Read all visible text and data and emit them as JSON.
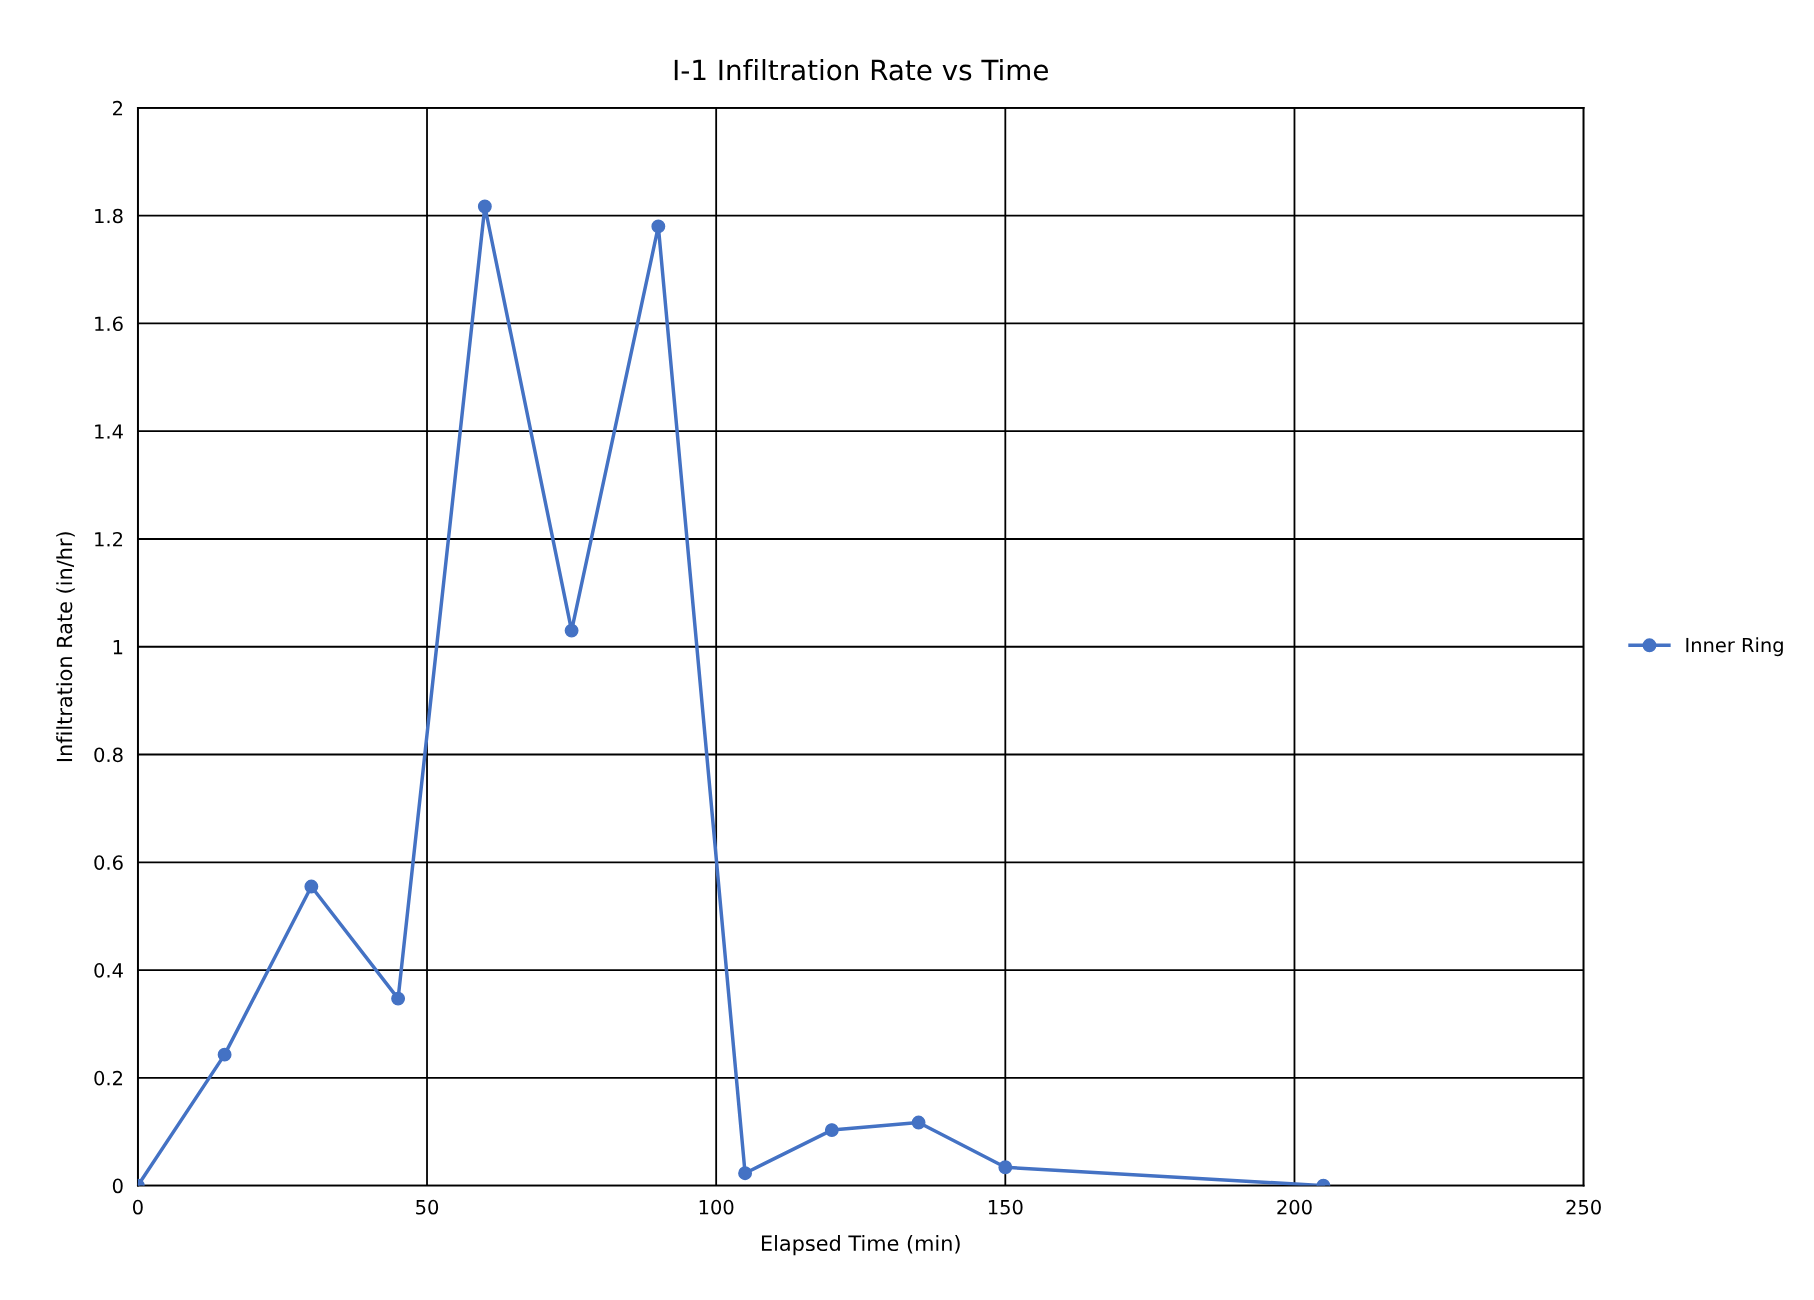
{
  "chart_data": {
    "type": "line",
    "title": "I-1 Infiltration Rate vs Time",
    "xlabel": "Elapsed Time (min)",
    "ylabel": "Infiltration Rate (in/hr)",
    "x": [
      0,
      15,
      30,
      45,
      60,
      75,
      90,
      105,
      120,
      135,
      150,
      205
    ],
    "series": [
      {
        "name": "Inner Ring",
        "color": "#4472c4",
        "values": [
          0,
          0.243,
          0.555,
          0.347,
          1.817,
          1.03,
          1.78,
          0.023,
          0.103,
          0.117,
          0.034,
          0
        ]
      }
    ],
    "xlim": [
      0,
      250
    ],
    "xticks": [
      0,
      50,
      100,
      150,
      200,
      250
    ],
    "ylim": [
      0,
      2
    ],
    "yticks": [
      0,
      0.2,
      0.4,
      0.6,
      0.8,
      1,
      1.2,
      1.4,
      1.6,
      1.8,
      2
    ],
    "grid": true,
    "legend": "right",
    "marker": "circle",
    "line_style": "solid"
  }
}
